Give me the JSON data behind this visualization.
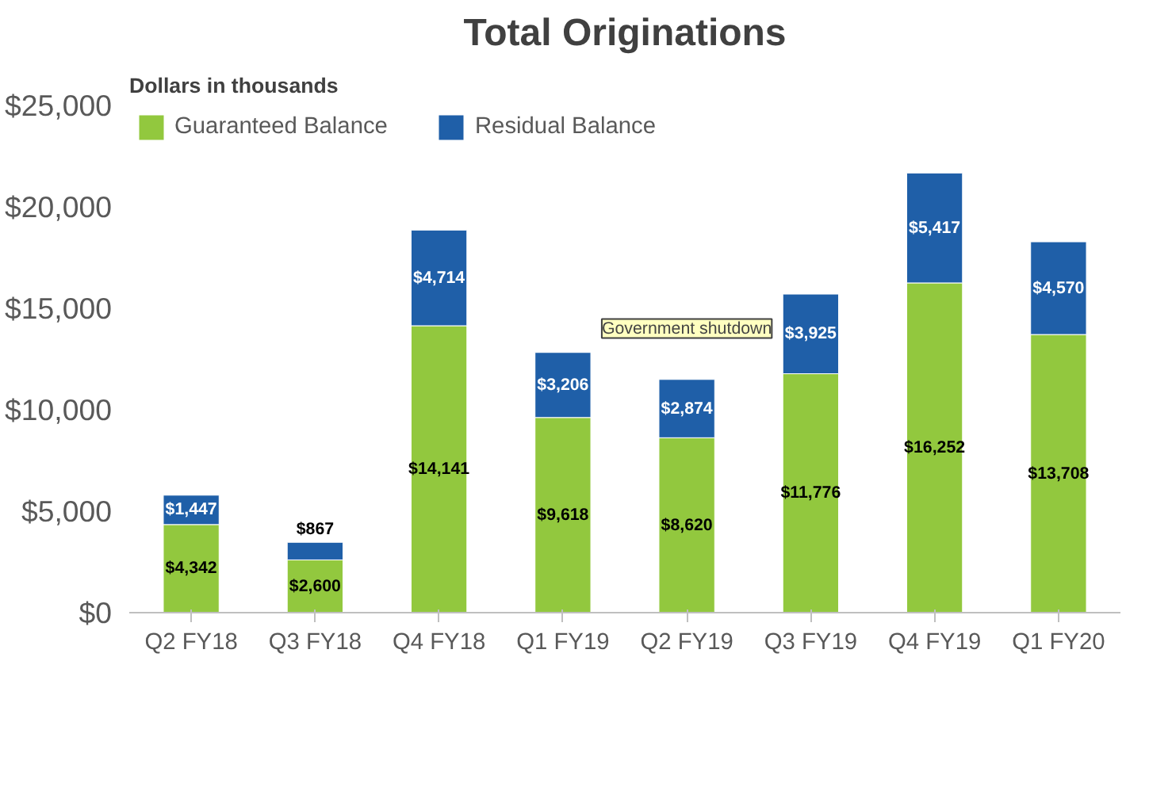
{
  "chart_data": {
    "type": "bar",
    "title": "Total Originations",
    "stacked": true,
    "categories": [
      "Q2 FY18",
      "Q3 FY18",
      "Q4 FY18",
      "Q1 FY19",
      "Q2 FY19",
      "Q3 FY19",
      "Q4 FY19",
      "Q1 FY20"
    ],
    "series": [
      {
        "name": "Guaranteed Balance",
        "color": "#92c83e",
        "values": [
          4342,
          2600,
          14141,
          9618,
          8620,
          11776,
          16252,
          13708
        ],
        "value_labels": [
          "$4,342",
          "$2,600",
          "$14,141",
          "$9,618",
          "$8,620",
          "$11,776",
          "$16,252",
          "$13,708"
        ]
      },
      {
        "name": "Residual Balance",
        "color": "#1f5fa8",
        "values": [
          1447,
          867,
          4714,
          3206,
          2874,
          3925,
          5417,
          4570
        ],
        "value_labels": [
          "$1,447",
          "$867",
          "$4,714",
          "$3,206",
          "$2,874",
          "$3,925",
          "$5,417",
          "$4,570"
        ]
      }
    ],
    "ylim": [
      0,
      25000
    ],
    "yticks": [
      {
        "value": 0,
        "label": "$0"
      },
      {
        "value": 5000,
        "label": "$5,000"
      },
      {
        "value": 10000,
        "label": "$10,000"
      },
      {
        "value": 15000,
        "label": "$15,000"
      },
      {
        "value": 20000,
        "label": "$20,000"
      },
      {
        "value": 25000,
        "label": "$25,000"
      }
    ],
    "grid": false,
    "legend": "top left",
    "annotations": [
      "Dollars in thousands",
      "Government shutdown"
    ]
  }
}
